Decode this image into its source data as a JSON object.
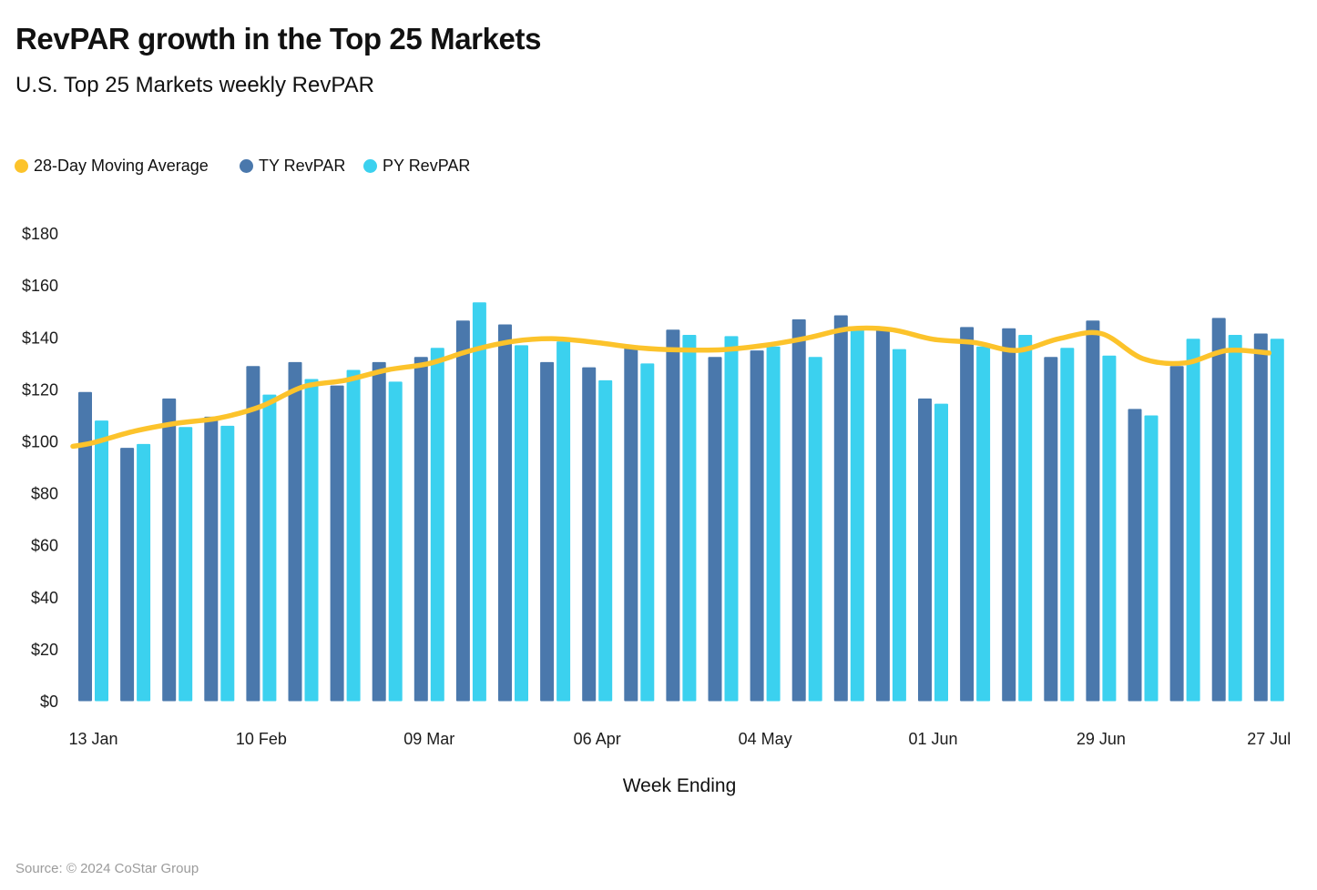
{
  "page": {
    "background": "#ffffff"
  },
  "header": {
    "title": "RevPAR growth in the Top 25 Markets",
    "subtitle": "U.S. Top 25 Markets weekly RevPAR"
  },
  "legend": {
    "position": "top-left",
    "items": [
      {
        "label": "28-Day Moving Average",
        "color": "#fcc32b",
        "marker": "circle"
      },
      {
        "label": "TY RevPAR",
        "color": "#4a78ac",
        "marker": "circle"
      },
      {
        "label": "PY RevPAR",
        "color": "#3bd1ef",
        "marker": "circle"
      }
    ]
  },
  "footer": {
    "source": "Source: © 2024 CoStar Group"
  },
  "chart_data": {
    "type": "bar",
    "title": "RevPAR growth in the Top 25 Markets",
    "subtitle": "U.S. Top 25 Markets weekly RevPAR",
    "xlabel": "Week Ending",
    "ylabel": "",
    "units": "USD",
    "ylim": [
      0,
      180
    ],
    "grid": false,
    "weeks": 29,
    "y_tick_values": [
      0,
      20,
      40,
      60,
      80,
      100,
      120,
      140,
      160,
      180
    ],
    "y_tick_labels": [
      "$0",
      "$20",
      "$40",
      "$60",
      "$80",
      "$100",
      "$120",
      "$140",
      "$160",
      "$180"
    ],
    "x_ticks": [
      {
        "week": 1,
        "label": "13 Jan"
      },
      {
        "week": 5,
        "label": "10 Feb"
      },
      {
        "week": 9,
        "label": "09 Mar"
      },
      {
        "week": 13,
        "label": "06 Apr"
      },
      {
        "week": 17,
        "label": "04 May"
      },
      {
        "week": 21,
        "label": "01 Jun"
      },
      {
        "week": 25,
        "label": "29 Jun"
      },
      {
        "week": 29,
        "label": "27 Jul"
      }
    ],
    "series": [
      {
        "name": "TY RevPAR",
        "type": "bar",
        "color": "#4a78ac",
        "values": [
          119,
          97.5,
          116.5,
          109.5,
          129,
          130.5,
          121.5,
          130.5,
          132.5,
          146.5,
          145,
          130.5,
          128.5,
          136,
          143,
          132.5,
          135,
          147,
          148.5,
          143,
          116.5,
          144,
          143.5,
          132.5,
          146.5,
          112.5,
          129,
          147.5,
          141.5
        ]
      },
      {
        "name": "PY RevPAR",
        "type": "bar",
        "color": "#3bd1ef",
        "values": [
          108,
          99,
          105.5,
          106,
          118,
          124,
          127.5,
          123,
          136,
          153.5,
          137,
          138.5,
          123.5,
          130,
          141,
          140.5,
          136.5,
          132.5,
          143,
          135.5,
          114.5,
          136.5,
          141,
          136,
          133,
          110,
          139.5,
          141,
          139.5
        ]
      },
      {
        "name": "28-Day Moving Average",
        "type": "line",
        "color": "#fcc32b",
        "values": [
          99.5,
          104,
          107,
          109,
          113.5,
          121,
          123.5,
          127.5,
          130,
          135,
          138.5,
          139.5,
          138,
          136,
          135.2,
          135.3,
          137,
          139.8,
          143.3,
          143,
          139.3,
          138,
          135,
          139.5,
          141.5,
          131.8,
          130.2,
          135,
          134
        ]
      }
    ]
  }
}
